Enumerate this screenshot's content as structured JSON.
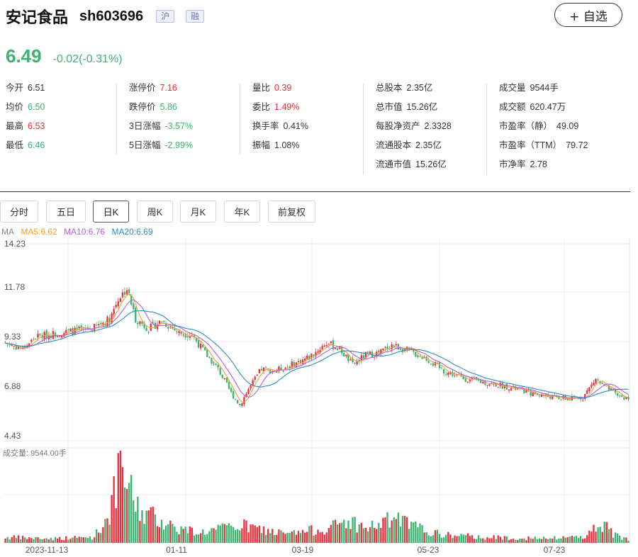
{
  "header": {
    "name": "安记食品",
    "code": "sh603696",
    "badges": [
      "沪",
      "融"
    ],
    "fav_label": "+ 自选"
  },
  "quote": {
    "price": "6.49",
    "change": "-0.02(-0.31%)"
  },
  "stats": {
    "col1": [
      {
        "label": "今开",
        "value": "6.51",
        "color": "dark"
      },
      {
        "label": "均价",
        "value": "6.50",
        "color": "green"
      },
      {
        "label": "最高",
        "value": "6.53",
        "color": "red"
      },
      {
        "label": "最低",
        "value": "6.46",
        "color": "green"
      }
    ],
    "col2": [
      {
        "label": "涨停价",
        "value": "7.16",
        "color": "red"
      },
      {
        "label": "跌停价",
        "value": "5.86",
        "color": "green"
      },
      {
        "label": "3日涨幅",
        "value": "-3.57%",
        "color": "green"
      },
      {
        "label": "5日涨幅",
        "value": "-2.99%",
        "color": "green"
      }
    ],
    "col3": [
      {
        "label": "量比",
        "value": "0.39",
        "color": "red"
      },
      {
        "label": "委比",
        "value": "1.49%",
        "color": "red"
      },
      {
        "label": "换手率",
        "value": "0.41%",
        "color": "dark"
      },
      {
        "label": "振幅",
        "value": "1.08%",
        "color": "dark"
      }
    ],
    "col4": [
      {
        "label": "总股本",
        "value": "2.35亿",
        "color": "dark"
      },
      {
        "label": "总市值",
        "value": "15.26亿",
        "color": "dark"
      },
      {
        "label": "每股净资产",
        "value": "2.3328",
        "color": "dark"
      },
      {
        "label": "流通股本",
        "value": "2.35亿",
        "color": "dark"
      },
      {
        "label": "流通市值",
        "value": "15.26亿",
        "color": "dark"
      }
    ],
    "col5": [
      {
        "label": "成交量",
        "value": "9544手",
        "color": "dark"
      },
      {
        "label": "成交额",
        "value": "620.47万",
        "color": "dark"
      },
      {
        "label": "市盈率（静）",
        "value": "49.09",
        "color": "dark"
      },
      {
        "label": "市盈率（TTM）",
        "value": "79.72",
        "color": "dark"
      },
      {
        "label": "市净率",
        "value": "2.78",
        "color": "dark"
      }
    ]
  },
  "tabs": [
    "分时",
    "五日",
    "日K",
    "周K",
    "月K",
    "年K",
    "前复权"
  ],
  "active_tab": "日K",
  "legend": {
    "prefix": "MA",
    "ma5": "MA5:6.62",
    "ma10": "MA10:6.76",
    "ma20": "MA20:6.69"
  },
  "colors": {
    "up": "#e5323e",
    "down": "#3cb371",
    "ma5": "#f0a030",
    "ma10": "#b15de0",
    "ma20": "#2a8cc4",
    "grid": "#eeeeee"
  },
  "chart_data": {
    "type": "candlestick",
    "price_axis_ticks": [
      "14.23",
      "11.78",
      "9.33",
      "6.88",
      "4.43"
    ],
    "ylim": [
      4.43,
      14.23
    ],
    "x_tick_labels": [
      "2023-11-13",
      "01-11",
      "03-19",
      "05-23",
      "07-23"
    ],
    "volume_label": "成交量: 9544.00手",
    "close_anchors": [
      [
        0,
        9.3
      ],
      [
        8,
        9.0
      ],
      [
        14,
        9.6
      ],
      [
        25,
        9.8
      ],
      [
        40,
        10.0
      ],
      [
        48,
        10.5
      ],
      [
        52,
        11.5
      ],
      [
        56,
        12.0
      ],
      [
        60,
        10.5
      ],
      [
        66,
        10.0
      ],
      [
        72,
        10.4
      ],
      [
        80,
        9.8
      ],
      [
        86,
        9.7
      ],
      [
        92,
        8.8
      ],
      [
        98,
        8.0
      ],
      [
        104,
        6.8
      ],
      [
        108,
        6.2
      ],
      [
        112,
        7.0
      ],
      [
        118,
        8.0
      ],
      [
        124,
        7.9
      ],
      [
        134,
        8.3
      ],
      [
        140,
        8.6
      ],
      [
        148,
        9.3
      ],
      [
        154,
        9.0
      ],
      [
        160,
        8.2
      ],
      [
        166,
        8.7
      ],
      [
        172,
        8.8
      ],
      [
        178,
        9.2
      ],
      [
        186,
        8.9
      ],
      [
        194,
        8.5
      ],
      [
        202,
        7.9
      ],
      [
        212,
        7.5
      ],
      [
        222,
        7.3
      ],
      [
        232,
        7.1
      ],
      [
        242,
        6.8
      ],
      [
        252,
        6.6
      ],
      [
        260,
        6.5
      ],
      [
        266,
        6.6
      ],
      [
        272,
        7.5
      ],
      [
        276,
        7.1
      ],
      [
        282,
        6.7
      ],
      [
        287,
        6.49
      ]
    ],
    "volume_anchors": [
      [
        0,
        0.08
      ],
      [
        20,
        0.06
      ],
      [
        40,
        0.08
      ],
      [
        44,
        0.2
      ],
      [
        48,
        0.45
      ],
      [
        52,
        0.9
      ],
      [
        54,
        1.0
      ],
      [
        58,
        0.7
      ],
      [
        62,
        0.45
      ],
      [
        70,
        0.35
      ],
      [
        80,
        0.2
      ],
      [
        90,
        0.15
      ],
      [
        100,
        0.2
      ],
      [
        108,
        0.25
      ],
      [
        116,
        0.2
      ],
      [
        130,
        0.12
      ],
      [
        150,
        0.22
      ],
      [
        158,
        0.32
      ],
      [
        166,
        0.2
      ],
      [
        180,
        0.35
      ],
      [
        186,
        0.25
      ],
      [
        200,
        0.12
      ],
      [
        220,
        0.08
      ],
      [
        250,
        0.06
      ],
      [
        268,
        0.1
      ],
      [
        274,
        0.3
      ],
      [
        280,
        0.12
      ],
      [
        287,
        0.05
      ]
    ]
  }
}
